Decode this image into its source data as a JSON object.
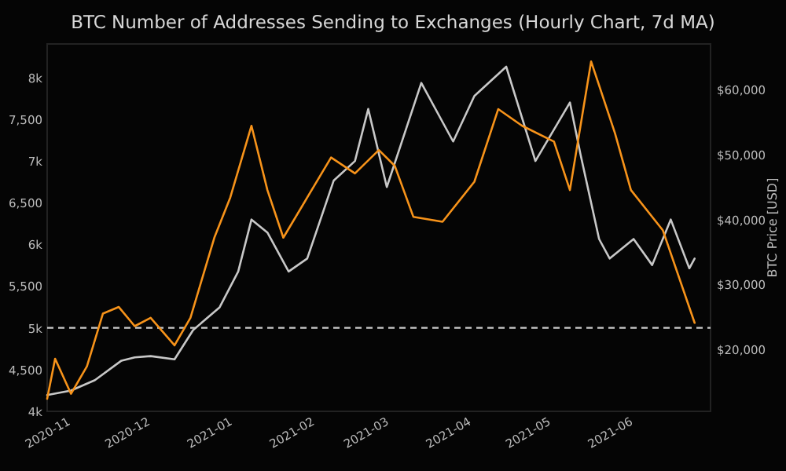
{
  "chart_data": {
    "type": "line",
    "title": "BTC Number of Addresses Sending to Exchanges (Hourly Chart, 7d MA)",
    "y2label": "BTC Price [USD]",
    "xlim": [
      "2020-10-23",
      "2021-06-30"
    ],
    "xticks": [
      {
        "value": "2020-11-01",
        "label": "2020-11"
      },
      {
        "value": "2020-12-01",
        "label": "2020-12"
      },
      {
        "value": "2021-01-01",
        "label": "2021-01"
      },
      {
        "value": "2021-02-01",
        "label": "2021-02"
      },
      {
        "value": "2021-03-01",
        "label": "2021-03"
      },
      {
        "value": "2021-04-01",
        "label": "2021-04"
      },
      {
        "value": "2021-05-01",
        "label": "2021-05"
      },
      {
        "value": "2021-06-01",
        "label": "2021-06"
      }
    ],
    "ylim": [
      4000,
      8400
    ],
    "yticks": [
      {
        "value": 4000,
        "label": "4k"
      },
      {
        "value": 4500,
        "label": "4,500"
      },
      {
        "value": 5000,
        "label": "5k"
      },
      {
        "value": 5500,
        "label": "5,500"
      },
      {
        "value": 6000,
        "label": "6k"
      },
      {
        "value": 6500,
        "label": "6,500"
      },
      {
        "value": 7000,
        "label": "7k"
      },
      {
        "value": 7500,
        "label": "7,500"
      },
      {
        "value": 8000,
        "label": "8k"
      }
    ],
    "y2lim": [
      10500,
      67000
    ],
    "y2ticks": [
      {
        "value": 20000,
        "label": "$20,000"
      },
      {
        "value": 30000,
        "label": "$30,000"
      },
      {
        "value": 40000,
        "label": "$40,000"
      },
      {
        "value": 50000,
        "label": "$50,000"
      },
      {
        "value": 60000,
        "label": "$60,000"
      }
    ],
    "ref_lines": [
      {
        "axis": "y",
        "value": 5000,
        "color": "#cccccc",
        "line_style": "dashed"
      }
    ],
    "series": [
      {
        "axis": "y2",
        "color": "#c8c8c8",
        "x": [
          "2020-10-23",
          "2020-11-01",
          "2020-11-10",
          "2020-11-20",
          "2020-11-25",
          "2020-12-01",
          "2020-12-10",
          "2020-12-17",
          "2020-12-27",
          "2021-01-03",
          "2021-01-08",
          "2021-01-14",
          "2021-01-22",
          "2021-01-29",
          "2021-02-08",
          "2021-02-16",
          "2021-02-21",
          "2021-02-28",
          "2021-03-13",
          "2021-03-25",
          "2021-04-02",
          "2021-04-14",
          "2021-04-25",
          "2021-05-08",
          "2021-05-12",
          "2021-05-19",
          "2021-05-23",
          "2021-06-01",
          "2021-06-08",
          "2021-06-15",
          "2021-06-22",
          "2021-06-24"
        ],
        "values": [
          13000,
          13700,
          15300,
          18300,
          18800,
          19000,
          18500,
          23000,
          26500,
          32000,
          40000,
          38000,
          32000,
          34000,
          46000,
          49000,
          57000,
          45000,
          61000,
          52000,
          59000,
          63500,
          49000,
          58000,
          50000,
          37000,
          34000,
          37000,
          33000,
          40000,
          32500,
          34000
        ]
      },
      {
        "axis": "y",
        "color": "#f7931a",
        "x": [
          "2020-10-23",
          "2020-10-26",
          "2020-11-01",
          "2020-11-07",
          "2020-11-13",
          "2020-11-19",
          "2020-11-25",
          "2020-12-01",
          "2020-12-10",
          "2020-12-16",
          "2020-12-19",
          "2020-12-25",
          "2020-12-31",
          "2021-01-08",
          "2021-01-14",
          "2021-01-20",
          "2021-01-29",
          "2021-02-07",
          "2021-02-16",
          "2021-02-25",
          "2021-03-03",
          "2021-03-10",
          "2021-03-21",
          "2021-04-02",
          "2021-04-11",
          "2021-04-20",
          "2021-05-02",
          "2021-05-08",
          "2021-05-16",
          "2021-05-25",
          "2021-05-31",
          "2021-06-12",
          "2021-06-24"
        ],
        "values": [
          4150,
          4630,
          4210,
          4540,
          5170,
          5250,
          5020,
          5120,
          4790,
          5120,
          5440,
          6080,
          6560,
          7420,
          6650,
          6080,
          6560,
          7040,
          6850,
          7130,
          6940,
          6330,
          6270,
          6750,
          7620,
          7420,
          7230,
          6650,
          8190,
          7330,
          6650,
          6170,
          5060
        ]
      }
    ]
  }
}
